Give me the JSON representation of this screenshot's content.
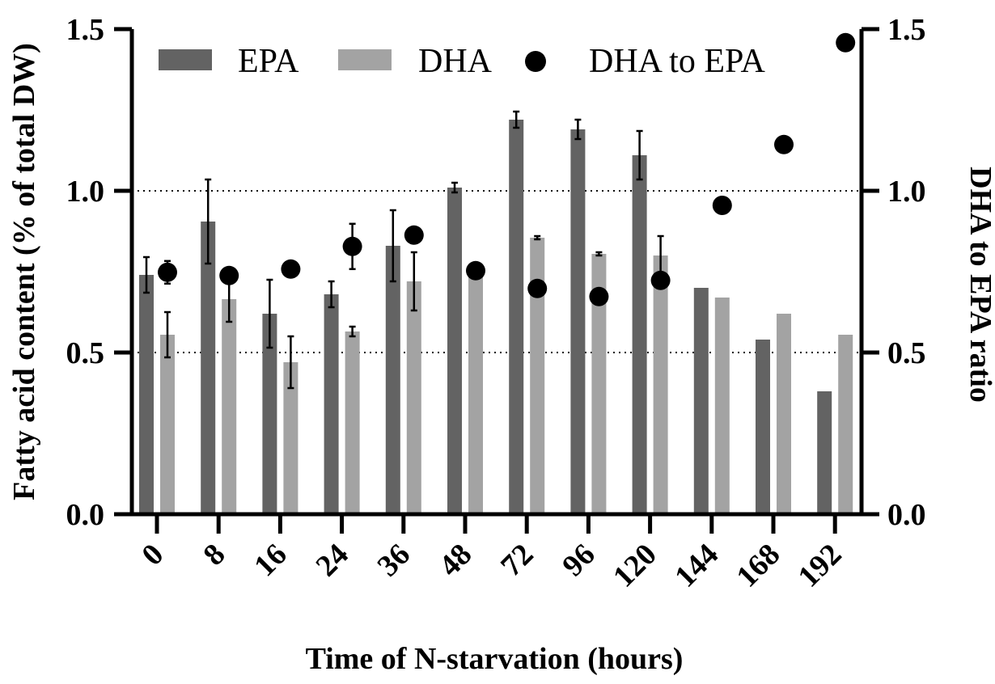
{
  "chart_data": {
    "type": "bar",
    "categories": [
      "0",
      "8",
      "16",
      "24",
      "36",
      "48",
      "72",
      "96",
      "120",
      "144",
      "168",
      "192"
    ],
    "series": [
      {
        "name": "EPA",
        "kind": "bar",
        "color": "#636363",
        "values": [
          0.74,
          0.905,
          0.62,
          0.68,
          0.83,
          1.01,
          1.22,
          1.19,
          1.11,
          0.7,
          0.54,
          0.38
        ],
        "errors": [
          0.055,
          0.13,
          0.105,
          0.04,
          0.11,
          0.015,
          0.025,
          0.03,
          0.075,
          null,
          null,
          null
        ]
      },
      {
        "name": "DHA",
        "kind": "bar",
        "color": "#a3a3a3",
        "values": [
          0.555,
          0.665,
          0.47,
          0.565,
          0.72,
          0.745,
          0.855,
          0.805,
          0.8,
          0.67,
          0.62,
          0.555
        ],
        "errors": [
          0.07,
          0.07,
          0.08,
          0.015,
          0.09,
          null,
          0.005,
          0.005,
          0.06,
          null,
          null,
          null
        ]
      },
      {
        "name": "DHA to EPA",
        "kind": "scatter",
        "axis": "right",
        "color": "#000000",
        "values": [
          0.748,
          0.738,
          0.758,
          0.828,
          0.863,
          0.753,
          0.698,
          0.673,
          0.723,
          0.955,
          1.143,
          1.458
        ],
        "errors": [
          0.035,
          null,
          null,
          0.07,
          null,
          null,
          null,
          null,
          null,
          null,
          null,
          null
        ]
      }
    ],
    "xlabel": "Time of N-starvation (hours)",
    "ylabel": "Fatty acid content (% of total DW)",
    "ylabel_right": "DHA to EPA ratio",
    "ylim": [
      0,
      1.5
    ],
    "ylim_right": [
      0,
      1.5
    ],
    "yticks": [
      "0.0",
      "0.5",
      "1.0",
      "1.5"
    ],
    "yticks_right": [
      "0.0",
      "0.5",
      "1.0",
      "1.5"
    ],
    "ytick_values": [
      0,
      0.5,
      1.0,
      1.5
    ],
    "gridlines": [
      0.5,
      1.0
    ],
    "grid_style": "dotted",
    "legend": {
      "placement": "top",
      "entries": [
        "EPA",
        "DHA",
        "DHA to EPA"
      ]
    }
  }
}
